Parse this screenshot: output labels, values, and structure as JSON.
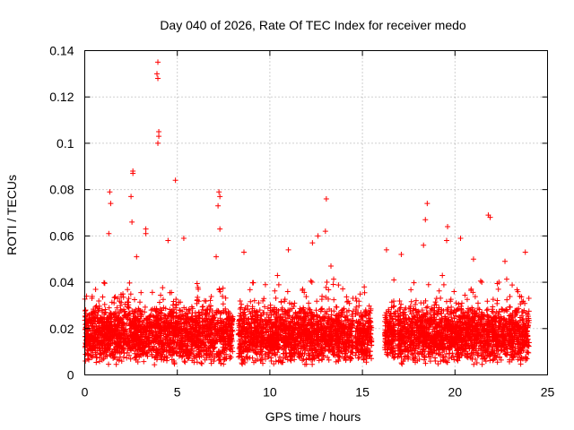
{
  "chart_data": {
    "type": "scatter",
    "title": "Day 040 of 2026, Rate Of TEC Index for receiver medo",
    "xlabel": "GPS time / hours",
    "ylabel": "ROTI / TECUs",
    "xlim": [
      0,
      25
    ],
    "ylim": [
      0,
      0.14
    ],
    "xticks": [
      0,
      5,
      10,
      15,
      20,
      25
    ],
    "yticks": [
      0,
      0.02,
      0.04,
      0.06,
      0.08,
      0.1,
      0.12,
      0.14
    ],
    "xtick_labels": [
      "0",
      "5",
      "10",
      "15",
      "20",
      "25"
    ],
    "ytick_labels": [
      "0",
      "0.02",
      "0.04",
      "0.06",
      "0.08",
      "0.1",
      "0.12",
      "0.14"
    ],
    "grid": true,
    "marker": "+",
    "color": "#ff0000",
    "series": [
      {
        "name": "ROTI",
        "coverage_hours": [
          [
            0.0,
            8.0
          ],
          [
            8.3,
            14.5
          ],
          [
            14.6,
            15.5
          ],
          [
            16.2,
            16.8
          ],
          [
            16.9,
            24.0
          ]
        ],
        "typical_range": [
          0.005,
          0.035
        ],
        "notable_points": [
          {
            "x": 3.95,
            "y": 0.135
          },
          {
            "x": 3.9,
            "y": 0.13
          },
          {
            "x": 3.95,
            "y": 0.128
          },
          {
            "x": 4.0,
            "y": 0.105
          },
          {
            "x": 4.0,
            "y": 0.103
          },
          {
            "x": 3.95,
            "y": 0.1
          },
          {
            "x": 2.6,
            "y": 0.088
          },
          {
            "x": 2.6,
            "y": 0.087
          },
          {
            "x": 4.9,
            "y": 0.084
          },
          {
            "x": 1.35,
            "y": 0.079
          },
          {
            "x": 7.25,
            "y": 0.079
          },
          {
            "x": 2.5,
            "y": 0.077
          },
          {
            "x": 7.3,
            "y": 0.077
          },
          {
            "x": 13.05,
            "y": 0.076
          },
          {
            "x": 1.4,
            "y": 0.074
          },
          {
            "x": 18.5,
            "y": 0.074
          },
          {
            "x": 7.2,
            "y": 0.073
          },
          {
            "x": 21.8,
            "y": 0.069
          },
          {
            "x": 21.9,
            "y": 0.068
          },
          {
            "x": 18.4,
            "y": 0.067
          },
          {
            "x": 2.55,
            "y": 0.066
          },
          {
            "x": 19.6,
            "y": 0.064
          },
          {
            "x": 7.3,
            "y": 0.063
          },
          {
            "x": 3.3,
            "y": 0.063
          },
          {
            "x": 13.0,
            "y": 0.062
          },
          {
            "x": 1.3,
            "y": 0.061
          },
          {
            "x": 3.3,
            "y": 0.061
          },
          {
            "x": 12.6,
            "y": 0.06
          },
          {
            "x": 20.3,
            "y": 0.059
          },
          {
            "x": 5.35,
            "y": 0.059
          },
          {
            "x": 19.55,
            "y": 0.058
          },
          {
            "x": 4.5,
            "y": 0.058
          },
          {
            "x": 12.3,
            "y": 0.057
          },
          {
            "x": 18.3,
            "y": 0.056
          },
          {
            "x": 23.8,
            "y": 0.053
          },
          {
            "x": 11.0,
            "y": 0.054
          },
          {
            "x": 16.3,
            "y": 0.054
          },
          {
            "x": 8.6,
            "y": 0.053
          },
          {
            "x": 17.1,
            "y": 0.052
          },
          {
            "x": 2.8,
            "y": 0.051
          },
          {
            "x": 7.1,
            "y": 0.051
          },
          {
            "x": 21.0,
            "y": 0.05
          },
          {
            "x": 13.3,
            "y": 0.047
          },
          {
            "x": 0.1,
            "y": 0.034
          },
          {
            "x": 0.05,
            "y": 0.028
          },
          {
            "x": 22.7,
            "y": 0.049
          },
          {
            "x": 15.1,
            "y": 0.038
          },
          {
            "x": 16.7,
            "y": 0.041
          }
        ]
      }
    ]
  }
}
